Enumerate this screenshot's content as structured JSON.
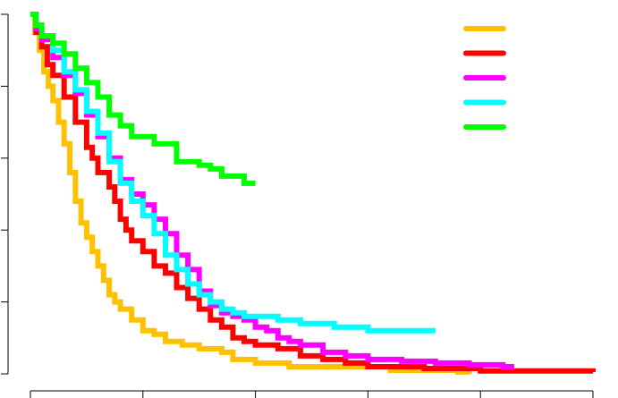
{
  "chart_data": {
    "type": "line",
    "step": true,
    "title": "",
    "xlabel": "",
    "ylabel": "",
    "xlim": [
      0,
      5
    ],
    "ylim": [
      0,
      1
    ],
    "x_ticks": [
      0,
      1,
      2,
      3,
      4,
      5
    ],
    "y_ticks": [
      0,
      0.2,
      0.4,
      0.6,
      0.8,
      1.0
    ],
    "tick_labels_visible": false,
    "grid": false,
    "legend": {
      "position": "top-right",
      "labels_visible": false
    },
    "series": [
      {
        "color": "#FFC000",
        "points": [
          [
            0,
            1.0
          ],
          [
            0.04,
            0.95
          ],
          [
            0.08,
            0.9
          ],
          [
            0.12,
            0.84
          ],
          [
            0.16,
            0.8
          ],
          [
            0.2,
            0.76
          ],
          [
            0.25,
            0.7
          ],
          [
            0.3,
            0.64
          ],
          [
            0.35,
            0.56
          ],
          [
            0.4,
            0.48
          ],
          [
            0.45,
            0.42
          ],
          [
            0.5,
            0.38
          ],
          [
            0.55,
            0.34
          ],
          [
            0.6,
            0.3
          ],
          [
            0.65,
            0.26
          ],
          [
            0.7,
            0.22
          ],
          [
            0.75,
            0.2
          ],
          [
            0.8,
            0.18
          ],
          [
            0.9,
            0.15
          ],
          [
            1.0,
            0.12
          ],
          [
            1.1,
            0.11
          ],
          [
            1.2,
            0.09
          ],
          [
            1.35,
            0.08
          ],
          [
            1.5,
            0.07
          ],
          [
            1.7,
            0.06
          ],
          [
            1.8,
            0.04
          ],
          [
            2.0,
            0.03
          ],
          [
            2.3,
            0.02
          ],
          [
            2.8,
            0.02
          ],
          [
            3.2,
            0.01
          ],
          [
            3.8,
            0.005
          ],
          [
            3.9,
            0.0
          ]
        ]
      },
      {
        "color": "#FF0000",
        "points": [
          [
            0,
            1.0
          ],
          [
            0.05,
            0.95
          ],
          [
            0.1,
            0.91
          ],
          [
            0.15,
            0.86
          ],
          [
            0.2,
            0.83
          ],
          [
            0.3,
            0.77
          ],
          [
            0.4,
            0.7
          ],
          [
            0.5,
            0.63
          ],
          [
            0.55,
            0.6
          ],
          [
            0.6,
            0.56
          ],
          [
            0.7,
            0.52
          ],
          [
            0.75,
            0.48
          ],
          [
            0.8,
            0.43
          ],
          [
            0.85,
            0.4
          ],
          [
            0.9,
            0.37
          ],
          [
            1.0,
            0.34
          ],
          [
            1.1,
            0.3
          ],
          [
            1.2,
            0.28
          ],
          [
            1.3,
            0.24
          ],
          [
            1.4,
            0.21
          ],
          [
            1.5,
            0.18
          ],
          [
            1.6,
            0.15
          ],
          [
            1.7,
            0.13
          ],
          [
            1.8,
            0.1
          ],
          [
            1.9,
            0.09
          ],
          [
            2.0,
            0.08
          ],
          [
            2.2,
            0.07
          ],
          [
            2.4,
            0.05
          ],
          [
            2.6,
            0.04
          ],
          [
            2.8,
            0.03
          ],
          [
            3.0,
            0.02
          ],
          [
            3.5,
            0.015
          ],
          [
            4.0,
            0.008
          ],
          [
            4.5,
            0.008
          ],
          [
            5.0,
            0.005
          ]
        ]
      },
      {
        "color": "#FF00FF",
        "points": [
          [
            0,
            1.0
          ],
          [
            0.05,
            0.96
          ],
          [
            0.1,
            0.93
          ],
          [
            0.2,
            0.88
          ],
          [
            0.3,
            0.83
          ],
          [
            0.4,
            0.78
          ],
          [
            0.5,
            0.72
          ],
          [
            0.6,
            0.66
          ],
          [
            0.7,
            0.6
          ],
          [
            0.8,
            0.54
          ],
          [
            0.9,
            0.5
          ],
          [
            1.0,
            0.47
          ],
          [
            1.1,
            0.43
          ],
          [
            1.2,
            0.39
          ],
          [
            1.3,
            0.33
          ],
          [
            1.4,
            0.29
          ],
          [
            1.5,
            0.23
          ],
          [
            1.6,
            0.19
          ],
          [
            1.7,
            0.17
          ],
          [
            1.8,
            0.16
          ],
          [
            1.9,
            0.15
          ],
          [
            2.0,
            0.13
          ],
          [
            2.1,
            0.12
          ],
          [
            2.2,
            0.1
          ],
          [
            2.3,
            0.09
          ],
          [
            2.4,
            0.08
          ],
          [
            2.6,
            0.06
          ],
          [
            2.8,
            0.05
          ],
          [
            3.0,
            0.04
          ],
          [
            3.3,
            0.035
          ],
          [
            3.6,
            0.03
          ],
          [
            3.9,
            0.025
          ],
          [
            4.2,
            0.02
          ],
          [
            4.3,
            0.02
          ]
        ]
      },
      {
        "color": "#00FFFF",
        "points": [
          [
            0,
            1.0
          ],
          [
            0.05,
            0.97
          ],
          [
            0.1,
            0.94
          ],
          [
            0.2,
            0.9
          ],
          [
            0.3,
            0.84
          ],
          [
            0.4,
            0.79
          ],
          [
            0.5,
            0.73
          ],
          [
            0.6,
            0.67
          ],
          [
            0.7,
            0.59
          ],
          [
            0.8,
            0.53
          ],
          [
            0.9,
            0.48
          ],
          [
            1.0,
            0.44
          ],
          [
            1.1,
            0.39
          ],
          [
            1.2,
            0.33
          ],
          [
            1.3,
            0.29
          ],
          [
            1.4,
            0.25
          ],
          [
            1.5,
            0.22
          ],
          [
            1.6,
            0.2
          ],
          [
            1.7,
            0.18
          ],
          [
            1.8,
            0.17
          ],
          [
            1.9,
            0.16
          ],
          [
            2.0,
            0.16
          ],
          [
            2.2,
            0.15
          ],
          [
            2.4,
            0.14
          ],
          [
            2.7,
            0.13
          ],
          [
            3.0,
            0.12
          ],
          [
            3.5,
            0.12
          ],
          [
            3.6,
            0.12
          ]
        ]
      },
      {
        "color": "#00FF00",
        "points": [
          [
            0,
            1.0
          ],
          [
            0.05,
            0.97
          ],
          [
            0.1,
            0.94
          ],
          [
            0.2,
            0.92
          ],
          [
            0.3,
            0.89
          ],
          [
            0.4,
            0.85
          ],
          [
            0.5,
            0.81
          ],
          [
            0.6,
            0.77
          ],
          [
            0.7,
            0.72
          ],
          [
            0.8,
            0.69
          ],
          [
            0.9,
            0.66
          ],
          [
            1.0,
            0.66
          ],
          [
            1.1,
            0.64
          ],
          [
            1.2,
            0.64
          ],
          [
            1.3,
            0.59
          ],
          [
            1.4,
            0.59
          ],
          [
            1.5,
            0.58
          ],
          [
            1.6,
            0.57
          ],
          [
            1.7,
            0.55
          ],
          [
            1.9,
            0.53
          ],
          [
            2.0,
            0.53
          ]
        ]
      }
    ]
  }
}
